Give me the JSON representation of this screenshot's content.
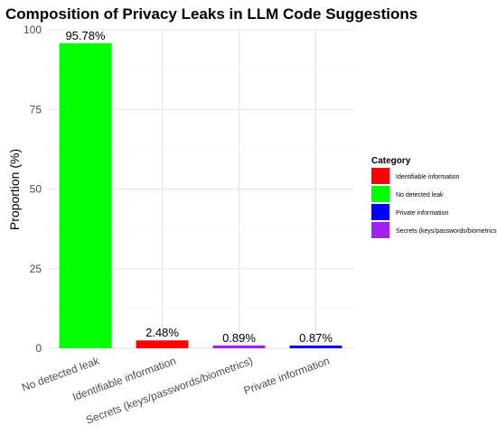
{
  "chart_data": {
    "type": "bar",
    "title": "Composition of Privacy Leaks in LLM Code Suggestions",
    "xlabel": "",
    "ylabel": "Proportion (%)",
    "ylim": [
      0,
      100
    ],
    "yticks": [
      0,
      25,
      50,
      75,
      100
    ],
    "grid": true,
    "categories": [
      "No detected leak",
      "Identifiable information",
      "Secrets (keys/passwords/biometrics)",
      "Private information"
    ],
    "values": [
      95.78,
      2.48,
      0.89,
      0.87
    ],
    "data_labels": [
      "95.78%",
      "2.48%",
      "0.89%",
      "0.87%"
    ],
    "bar_colors": [
      "#00ff00",
      "#ff0000",
      "#a020f0",
      "#0000ff"
    ],
    "legend": {
      "title": "Category",
      "position": "right",
      "entries": [
        {
          "label": "Identifiable information",
          "color": "#ff0000"
        },
        {
          "label": "No detected leak",
          "color": "#00ff00"
        },
        {
          "label": "Private information",
          "color": "#0000ff"
        },
        {
          "label": "Secrets (keys/passwords/biometrics)",
          "color": "#a020f0"
        }
      ]
    }
  }
}
